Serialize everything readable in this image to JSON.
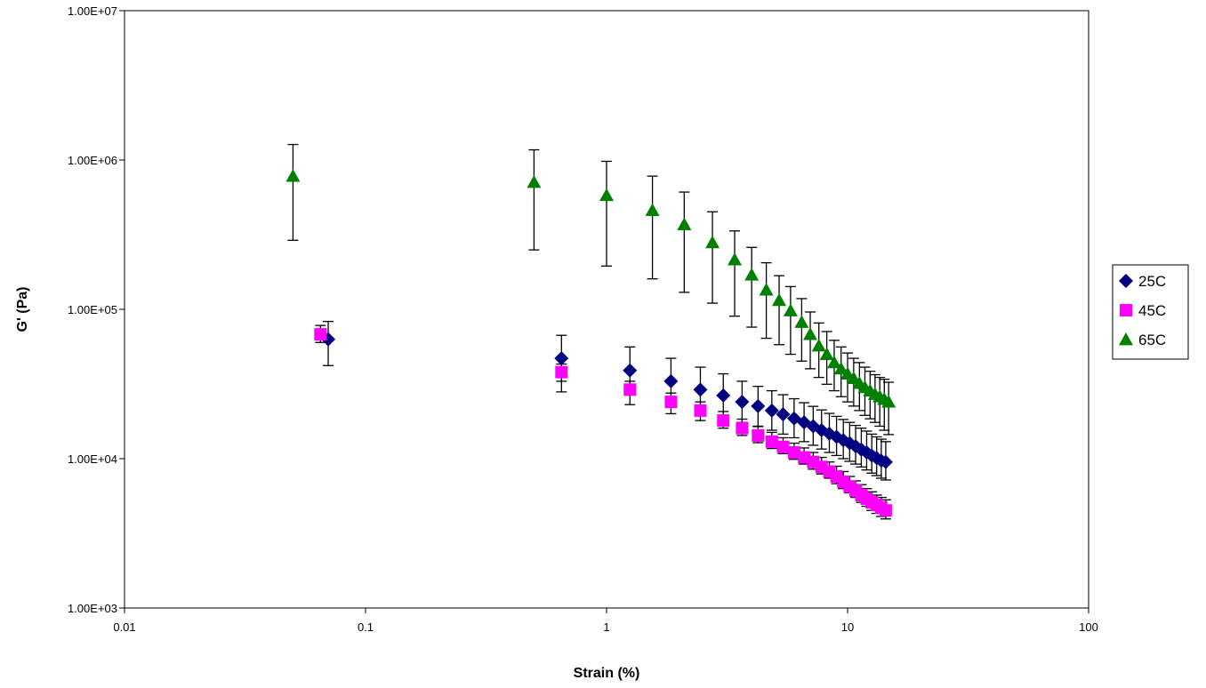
{
  "chart_data": {
    "type": "scatter",
    "title": "",
    "xlabel": "Strain (%)",
    "ylabel": "G' (Pa)",
    "xscale": "log",
    "yscale": "log",
    "xlim": [
      0.01,
      100
    ],
    "ylim": [
      1000,
      10000000
    ],
    "x_ticks": [
      "0.01",
      "0.1",
      "1",
      "10",
      "100"
    ],
    "y_ticks": [
      "1.00E+03",
      "1.00E+04",
      "1.00E+05",
      "1.00E+06",
      "1.00E+07"
    ],
    "grid": false,
    "legend_position": "right",
    "series": [
      {
        "name": "25C",
        "color": "#000080",
        "marker": "diamond",
        "x": [
          0.07,
          0.65,
          1.25,
          1.85,
          2.45,
          3.05,
          3.65,
          4.25,
          4.85,
          5.4,
          6.0,
          6.6,
          7.2,
          7.8,
          8.4,
          9.0,
          9.6,
          10.2,
          10.8,
          11.4,
          12.0,
          12.6,
          13.2,
          13.8,
          14.4
        ],
        "y": [
          63000,
          47000,
          39000,
          33000,
          29000,
          26500,
          24000,
          22500,
          21000,
          19800,
          18600,
          17500,
          16500,
          15500,
          14700,
          14000,
          13300,
          12700,
          12100,
          11500,
          11000,
          10500,
          10100,
          9700,
          9500
        ],
        "err_high": [
          83000,
          67000,
          56000,
          47000,
          41000,
          37000,
          33000,
          30500,
          28500,
          26800,
          25200,
          23700,
          22400,
          21200,
          20100,
          19200,
          18300,
          17500,
          16700,
          16000,
          15300,
          14600,
          14000,
          13500,
          13000
        ],
        "err_low": [
          42000,
          33000,
          27500,
          23500,
          20800,
          19000,
          17500,
          16500,
          15500,
          14600,
          13800,
          13000,
          12300,
          11600,
          11000,
          10500,
          10000,
          9600,
          9200,
          8800,
          8400,
          8000,
          7700,
          7400,
          7200
        ]
      },
      {
        "name": "45C",
        "color": "#FF00FF",
        "marker": "square",
        "x": [
          0.065,
          0.65,
          1.25,
          1.85,
          2.45,
          3.05,
          3.65,
          4.25,
          4.85,
          5.4,
          6.0,
          6.6,
          7.2,
          7.8,
          8.4,
          9.0,
          9.6,
          10.2,
          10.8,
          11.4,
          12.0,
          12.6,
          13.2,
          13.8,
          14.4
        ],
        "y": [
          68000,
          38000,
          29000,
          24000,
          21000,
          18000,
          16000,
          14300,
          13000,
          12000,
          11000,
          10200,
          9500,
          8800,
          8200,
          7600,
          7000,
          6500,
          6100,
          5700,
          5400,
          5100,
          4900,
          4700,
          4500
        ],
        "err_high": [
          78000,
          43000,
          33000,
          27500,
          24000,
          20700,
          18400,
          16400,
          15000,
          13800,
          12700,
          11800,
          11000,
          10200,
          9500,
          8900,
          8200,
          7600,
          7100,
          6700,
          6300,
          6000,
          5700,
          5500,
          5300
        ],
        "err_low": [
          60000,
          28000,
          23000,
          20000,
          18000,
          16000,
          14300,
          12800,
          11700,
          10800,
          9900,
          9200,
          8500,
          7900,
          7400,
          6800,
          6300,
          5900,
          5500,
          5100,
          4800,
          4500,
          4300,
          4100,
          3950
        ]
      },
      {
        "name": "65C",
        "color": "#008000",
        "marker": "triangle",
        "x": [
          0.05,
          0.5,
          1.0,
          1.55,
          2.1,
          2.75,
          3.4,
          4.0,
          4.6,
          5.2,
          5.8,
          6.45,
          7.0,
          7.6,
          8.2,
          8.8,
          9.4,
          10.0,
          10.6,
          11.2,
          11.8,
          12.4,
          13.0,
          13.6,
          14.2,
          14.8
        ],
        "y": [
          780000,
          710000,
          580000,
          460000,
          370000,
          280000,
          215000,
          170000,
          135000,
          115000,
          98000,
          82000,
          68000,
          57000,
          50000,
          44000,
          40000,
          37000,
          34500,
          32000,
          30000,
          28500,
          27000,
          26000,
          25000,
          24000
        ],
        "err_high": [
          1270000,
          1170000,
          980000,
          780000,
          610000,
          450000,
          335000,
          260000,
          205000,
          168000,
          142000,
          118000,
          96000,
          81000,
          71000,
          62000,
          56000,
          51000,
          47000,
          44000,
          41000,
          38500,
          36500,
          35000,
          34000,
          32500
        ],
        "err_low": [
          290000,
          250000,
          195000,
          160000,
          130000,
          110000,
          90000,
          76000,
          64000,
          58000,
          50000,
          45000,
          40000,
          35000,
          31500,
          28500,
          26000,
          24000,
          22500,
          21000,
          19500,
          18500,
          17500,
          16500,
          15500,
          14500
        ]
      }
    ]
  }
}
